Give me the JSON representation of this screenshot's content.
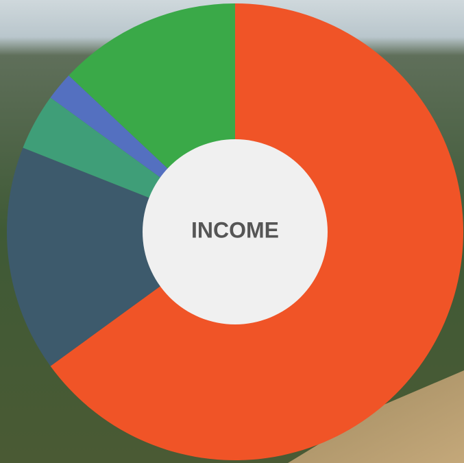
{
  "chart_data": {
    "type": "donut",
    "title": "INCOME",
    "values": [
      65,
      16,
      4,
      2,
      13
    ],
    "colors": [
      "#f05427",
      "#3d5a6c",
      "#3f9e78",
      "#5470c0",
      "#3aa948"
    ]
  }
}
